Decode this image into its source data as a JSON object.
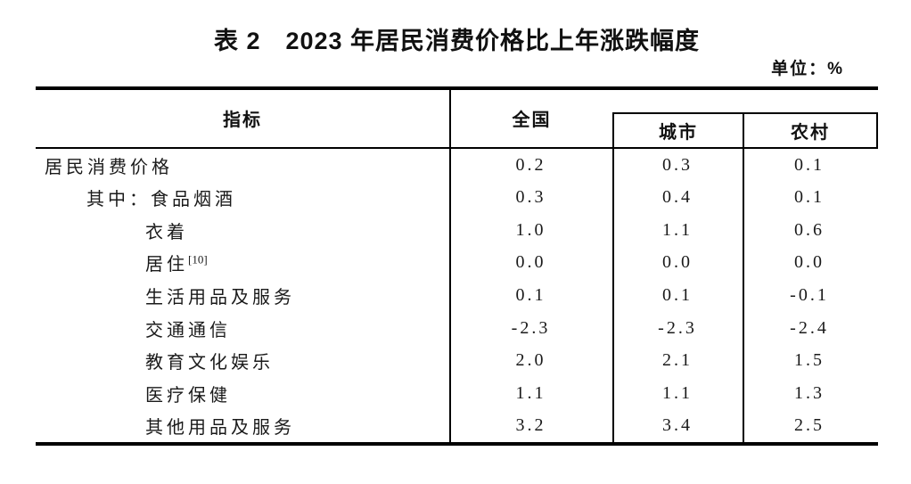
{
  "page": {
    "title": "表 2　2023 年居民消费价格比上年涨跌幅度",
    "unit_label": "单位：%"
  },
  "table": {
    "columns": {
      "indicator": "指标",
      "national": "全国",
      "urban": "城市",
      "rural": "农村"
    },
    "rows": [
      {
        "label": "居民消费价格",
        "sup": "",
        "national": "0.2",
        "urban": "0.3",
        "rural": "0.1"
      },
      {
        "label": "其中：食品烟酒",
        "sup": "",
        "national": "0.3",
        "urban": "0.4",
        "rural": "0.1"
      },
      {
        "label": "衣着",
        "sup": "",
        "national": "1.0",
        "urban": "1.1",
        "rural": "0.6"
      },
      {
        "label": "居住",
        "sup": "[10]",
        "national": "0.0",
        "urban": "0.0",
        "rural": "0.0"
      },
      {
        "label": "生活用品及服务",
        "sup": "",
        "national": "0.1",
        "urban": "0.1",
        "rural": "-0.1"
      },
      {
        "label": "交通通信",
        "sup": "",
        "national": "-2.3",
        "urban": "-2.3",
        "rural": "-2.4"
      },
      {
        "label": "教育文化娱乐",
        "sup": "",
        "national": "2.0",
        "urban": "2.1",
        "rural": "1.5"
      },
      {
        "label": "医疗保健",
        "sup": "",
        "national": "1.1",
        "urban": "1.1",
        "rural": "1.3"
      },
      {
        "label": "其他用品及服务",
        "sup": "",
        "national": "3.2",
        "urban": "3.4",
        "rural": "2.5"
      }
    ]
  },
  "chart_data": {
    "type": "table",
    "title": "表 2　2023 年居民消费价格比上年涨跌幅度",
    "unit": "%",
    "columns": [
      "指标",
      "全国",
      "城市",
      "农村"
    ],
    "rows": [
      [
        "居民消费价格",
        0.2,
        0.3,
        0.1
      ],
      [
        "其中：食品烟酒",
        0.3,
        0.4,
        0.1
      ],
      [
        "衣着",
        1.0,
        1.1,
        0.6
      ],
      [
        "居住[10]",
        0.0,
        0.0,
        0.0
      ],
      [
        "生活用品及服务",
        0.1,
        0.1,
        -0.1
      ],
      [
        "交通通信",
        -2.3,
        -2.3,
        -2.4
      ],
      [
        "教育文化娱乐",
        2.0,
        2.1,
        1.5
      ],
      [
        "医疗保健",
        1.1,
        1.1,
        1.3
      ],
      [
        "其他用品及服务",
        3.2,
        3.4,
        2.5
      ]
    ]
  }
}
